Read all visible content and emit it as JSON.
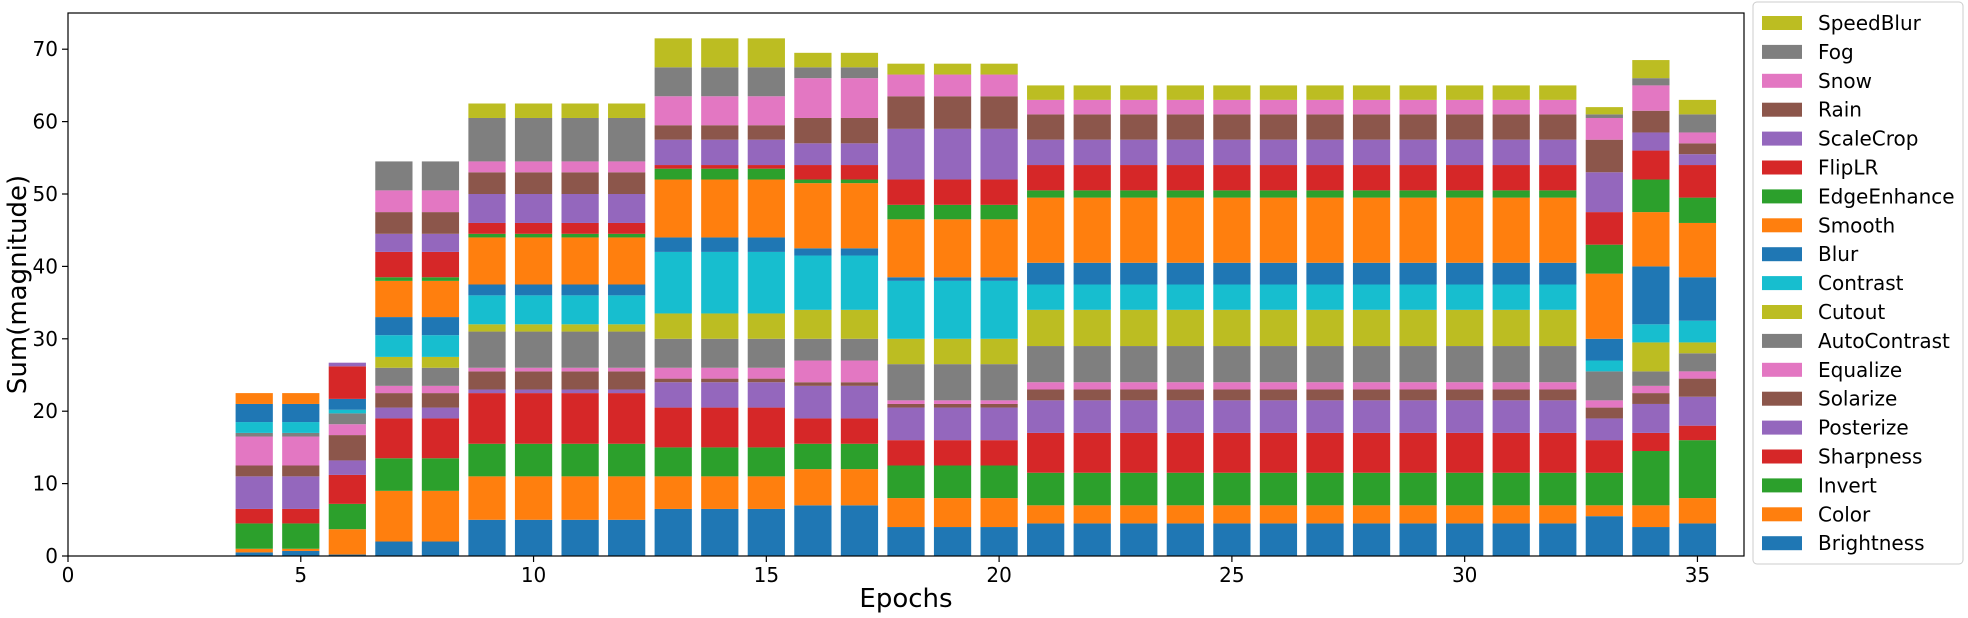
{
  "chart_data": {
    "type": "bar",
    "stacked": true,
    "xlabel": "Epochs",
    "ylabel": "Sum(magnitude)",
    "xlim": [
      0,
      36
    ],
    "ylim": [
      0,
      75
    ],
    "xticks": [
      0,
      5,
      10,
      15,
      20,
      25,
      30,
      35
    ],
    "yticks": [
      0,
      10,
      20,
      30,
      40,
      50,
      60,
      70
    ],
    "legend_position": "outside-right",
    "x": [
      4,
      5,
      6,
      7,
      8,
      9,
      10,
      11,
      12,
      13,
      14,
      15,
      16,
      17,
      18,
      19,
      20,
      21,
      22,
      23,
      24,
      25,
      26,
      27,
      28,
      29,
      30,
      31,
      32,
      33,
      34,
      35
    ],
    "series": [
      {
        "name": "Brightness",
        "color": "#1f77b4",
        "values": [
          0.5,
          0.7,
          0.2,
          2,
          2,
          5,
          5,
          5,
          5,
          6.5,
          6.5,
          6.5,
          7,
          7,
          4,
          4,
          4,
          4.5,
          4.5,
          4.5,
          4.5,
          4.5,
          4.5,
          4.5,
          4.5,
          4.5,
          4.5,
          4.5,
          4.5,
          5.5,
          4,
          4.5
        ]
      },
      {
        "name": "Color",
        "color": "#ff7f0e",
        "values": [
          0.5,
          0.3,
          3.5,
          7,
          7,
          6,
          6,
          6,
          6,
          4.5,
          4.5,
          4.5,
          5,
          5,
          4,
          4,
          4,
          2.5,
          2.5,
          2.5,
          2.5,
          2.5,
          2.5,
          2.5,
          2.5,
          2.5,
          2.5,
          2.5,
          2.5,
          1.5,
          3,
          3.5
        ]
      },
      {
        "name": "Invert",
        "color": "#2ca02c",
        "values": [
          3.5,
          3.5,
          3.5,
          4.5,
          4.5,
          4.5,
          4.5,
          4.5,
          4.5,
          4,
          4,
          4,
          3.5,
          3.5,
          4.5,
          4.5,
          4.5,
          4.5,
          4.5,
          4.5,
          4.5,
          4.5,
          4.5,
          4.5,
          4.5,
          4.5,
          4.5,
          4.5,
          4.5,
          4.5,
          7.5,
          8
        ]
      },
      {
        "name": "Sharpness",
        "color": "#d62728",
        "values": [
          2,
          2,
          4,
          5.5,
          5.5,
          7,
          7,
          7,
          7,
          5.5,
          5.5,
          5.5,
          3.5,
          3.5,
          3.5,
          3.5,
          3.5,
          5.5,
          5.5,
          5.5,
          5.5,
          5.5,
          5.5,
          5.5,
          5.5,
          5.5,
          5.5,
          5.5,
          5.5,
          4.5,
          2.5,
          2
        ]
      },
      {
        "name": "Posterize",
        "color": "#9467bd",
        "values": [
          4.5,
          4.5,
          2,
          1.5,
          1.5,
          0.5,
          0.5,
          0.5,
          0.5,
          3.5,
          3.5,
          3.5,
          4.5,
          4.5,
          4.5,
          4.5,
          4.5,
          4.5,
          4.5,
          4.5,
          4.5,
          4.5,
          4.5,
          4.5,
          4.5,
          4.5,
          4.5,
          4.5,
          4.5,
          3,
          4,
          4
        ]
      },
      {
        "name": "Solarize",
        "color": "#8c564b",
        "values": [
          1.5,
          1.5,
          3.5,
          2,
          2,
          2.5,
          2.5,
          2.5,
          2.5,
          0.5,
          0.5,
          0.5,
          0.5,
          0.5,
          0.5,
          0.5,
          0.5,
          1.5,
          1.5,
          1.5,
          1.5,
          1.5,
          1.5,
          1.5,
          1.5,
          1.5,
          1.5,
          1.5,
          1.5,
          1.5,
          1.5,
          2.5
        ]
      },
      {
        "name": "Equalize",
        "color": "#e377c2",
        "values": [
          4,
          4,
          1.5,
          1,
          1,
          0.5,
          0.5,
          0.5,
          0.5,
          1.5,
          1.5,
          1.5,
          3,
          3,
          0.5,
          0.5,
          0.5,
          1,
          1,
          1,
          1,
          1,
          1,
          1,
          1,
          1,
          1,
          1,
          1,
          1,
          1,
          1
        ]
      },
      {
        "name": "AutoContrast",
        "color": "#7f7f7f",
        "values": [
          0.5,
          0.5,
          1.5,
          2.5,
          2.5,
          5,
          5,
          5,
          5,
          4,
          4,
          4,
          3,
          3,
          5,
          5,
          5,
          5,
          5,
          5,
          5,
          5,
          5,
          5,
          5,
          5,
          5,
          5,
          5,
          4,
          2,
          2.5
        ]
      },
      {
        "name": "Cutout",
        "color": "#bcbd22",
        "values": [
          0,
          0,
          0,
          1.5,
          1.5,
          1,
          1,
          1,
          1,
          3.5,
          3.5,
          3.5,
          4,
          4,
          3.5,
          3.5,
          3.5,
          5,
          5,
          5,
          5,
          5,
          5,
          5,
          5,
          5,
          5,
          5,
          5,
          0,
          4,
          1.5
        ]
      },
      {
        "name": "Contrast",
        "color": "#17becf",
        "values": [
          1.5,
          1.5,
          0.5,
          3,
          3,
          4,
          4,
          4,
          4,
          8.5,
          8.5,
          8.5,
          7.5,
          7.5,
          8,
          8,
          8,
          3.5,
          3.5,
          3.5,
          3.5,
          3.5,
          3.5,
          3.5,
          3.5,
          3.5,
          3.5,
          3.5,
          3.5,
          1.5,
          2.5,
          3
        ]
      },
      {
        "name": "Blur",
        "color": "#1f77b4",
        "values": [
          2.5,
          2.5,
          1.5,
          2.5,
          2.5,
          1.5,
          1.5,
          1.5,
          1.5,
          2,
          2,
          2,
          1,
          1,
          0.5,
          0.5,
          0.5,
          3,
          3,
          3,
          3,
          3,
          3,
          3,
          3,
          3,
          3,
          3,
          3,
          3,
          8,
          6
        ]
      },
      {
        "name": "Smooth",
        "color": "#ff7f0e",
        "values": [
          1.5,
          1.5,
          0,
          5,
          5,
          6.5,
          6.5,
          6.5,
          6.5,
          8,
          8,
          8,
          9,
          9,
          8,
          8,
          8,
          9,
          9,
          9,
          9,
          9,
          9,
          9,
          9,
          9,
          9,
          9,
          9,
          9,
          7.5,
          7.5
        ]
      },
      {
        "name": "EdgeEnhance",
        "color": "#2ca02c",
        "values": [
          0,
          0,
          0,
          0.5,
          0.5,
          0.5,
          0.5,
          0.5,
          0.5,
          1.5,
          1.5,
          1.5,
          0.5,
          0.5,
          2,
          2,
          2,
          1,
          1,
          1,
          1,
          1,
          1,
          1,
          1,
          1,
          1,
          1,
          1,
          4,
          4.5,
          3.5
        ]
      },
      {
        "name": "FlipLR",
        "color": "#d62728",
        "values": [
          0,
          0,
          4.5,
          3.5,
          3.5,
          1.5,
          1.5,
          1.5,
          1.5,
          0.5,
          0.5,
          0.5,
          2,
          2,
          3.5,
          3.5,
          3.5,
          3.5,
          3.5,
          3.5,
          3.5,
          3.5,
          3.5,
          3.5,
          3.5,
          3.5,
          3.5,
          3.5,
          3.5,
          4.5,
          4,
          4.5
        ]
      },
      {
        "name": "ScaleCrop",
        "color": "#9467bd",
        "values": [
          0,
          0,
          0.5,
          2.5,
          2.5,
          4,
          4,
          4,
          4,
          3.5,
          3.5,
          3.5,
          3,
          3,
          7,
          7,
          7,
          3.5,
          3.5,
          3.5,
          3.5,
          3.5,
          3.5,
          3.5,
          3.5,
          3.5,
          3.5,
          3.5,
          3.5,
          5.5,
          2.5,
          1.5
        ]
      },
      {
        "name": "Rain",
        "color": "#8c564b",
        "values": [
          0,
          0,
          0,
          3,
          3,
          3,
          3,
          3,
          3,
          2,
          2,
          2,
          3.5,
          3.5,
          4.5,
          4.5,
          4.5,
          3.5,
          3.5,
          3.5,
          3.5,
          3.5,
          3.5,
          3.5,
          3.5,
          3.5,
          3.5,
          3.5,
          3.5,
          4.5,
          3,
          1.5
        ]
      },
      {
        "name": "Snow",
        "color": "#e377c2",
        "values": [
          0,
          0,
          0,
          3,
          3,
          1.5,
          1.5,
          1.5,
          1.5,
          4,
          4,
          4,
          5.5,
          5.5,
          3,
          3,
          3,
          2,
          2,
          2,
          2,
          2,
          2,
          2,
          2,
          2,
          2,
          2,
          2,
          3,
          3.5,
          1.5
        ]
      },
      {
        "name": "Fog",
        "color": "#7f7f7f",
        "values": [
          0,
          0,
          0,
          4,
          4,
          6,
          6,
          6,
          6,
          4,
          4,
          4,
          1.5,
          1.5,
          0,
          0,
          0,
          0,
          0,
          0,
          0,
          0,
          0,
          0,
          0,
          0,
          0,
          0,
          0,
          0.5,
          1,
          2.5
        ]
      },
      {
        "name": "SpeedBlur",
        "color": "#bcbd22",
        "values": [
          0,
          0,
          0,
          0,
          0,
          2,
          2,
          2,
          2,
          4,
          4,
          4,
          2,
          2,
          1.5,
          1.5,
          1.5,
          2,
          2,
          2,
          2,
          2,
          2,
          2,
          2,
          2,
          2,
          2,
          2,
          1,
          2.5,
          2
        ]
      }
    ]
  }
}
